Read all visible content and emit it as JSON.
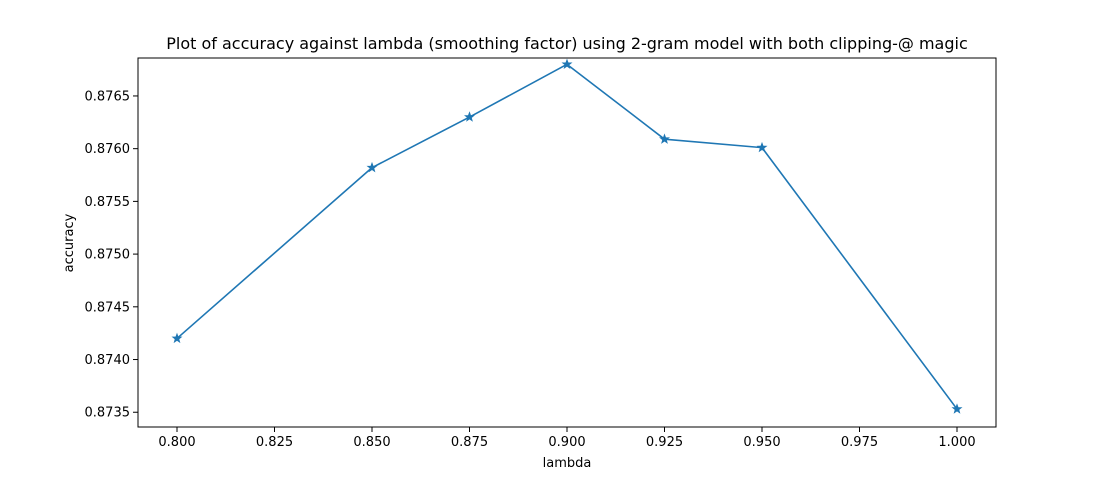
{
  "chart_data": {
    "type": "line",
    "title": "Plot of accuracy against lambda (smoothing factor) using 2-gram model with both clipping-@ magic",
    "xlabel": "lambda",
    "ylabel": "accuracy",
    "xlim": [
      0.79,
      1.01
    ],
    "ylim": [
      0.87336,
      0.87686
    ],
    "x_ticks": [
      "0.800",
      "0.825",
      "0.850",
      "0.875",
      "0.900",
      "0.925",
      "0.950",
      "0.975",
      "1.000"
    ],
    "y_ticks": [
      "0.8735",
      "0.8740",
      "0.8745",
      "0.8750",
      "0.8755",
      "0.8760",
      "0.8765"
    ],
    "grid": false,
    "marker": "star",
    "series": [
      {
        "color": "#1f77b4",
        "x": [
          0.8,
          0.85,
          0.875,
          0.9,
          0.925,
          0.95,
          1.0
        ],
        "y": [
          0.8742,
          0.87582,
          0.8763,
          0.8768,
          0.87609,
          0.87601,
          0.87353
        ]
      }
    ]
  }
}
